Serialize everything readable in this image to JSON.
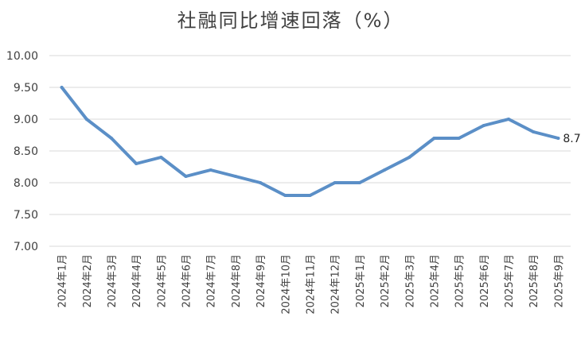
{
  "chart_data": {
    "type": "line",
    "title": "社融同比增速回落（%）",
    "categories": [
      "2024年1月",
      "2024年2月",
      "2024年3月",
      "2024年4月",
      "2024年5月",
      "2024年6月",
      "2024年7月",
      "2024年8月",
      "2024年9月",
      "2024年10月",
      "2024年11月",
      "2024年12月",
      "2025年1月",
      "2025年2月",
      "2025年3月",
      "2025年4月",
      "2025年5月",
      "2025年6月",
      "2025年7月",
      "2025年8月",
      "2025年9月"
    ],
    "values": [
      9.5,
      9.0,
      8.7,
      8.3,
      8.4,
      8.1,
      8.2,
      8.1,
      8.0,
      7.8,
      7.8,
      8.0,
      8.0,
      8.2,
      8.4,
      8.7,
      8.7,
      8.9,
      9.0,
      8.8,
      8.7
    ],
    "ylim": [
      7.0,
      10.0
    ],
    "yticks": [
      "7.00",
      "7.50",
      "8.00",
      "8.50",
      "9.00",
      "9.50",
      "10.00"
    ],
    "grid": true,
    "line_color": "#5b8fc7",
    "data_labels": [
      {
        "index": 20,
        "text": "8.70"
      }
    ]
  }
}
